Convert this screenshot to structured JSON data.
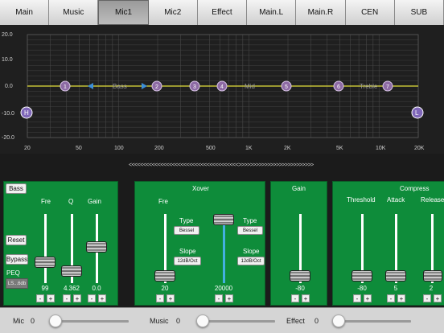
{
  "tabs": [
    "Main",
    "Music",
    "Mic1",
    "Mic2",
    "Effect",
    "Main.L",
    "Main.R",
    "CEN",
    "SUB"
  ],
  "active_tab": "Mic1",
  "eq": {
    "y_labels": [
      "20.0",
      "10.0",
      "0.0",
      "-10.0",
      "-20.0"
    ],
    "x_labels": [
      "20",
      "50",
      "100",
      "200",
      "500",
      "1K",
      "2K",
      "5K",
      "10K",
      "20K"
    ],
    "bands": [
      "1",
      "2",
      "3",
      "4",
      "5",
      "6",
      "7"
    ],
    "band_text": {
      "bass": "Bass",
      "mid": "Mid",
      "treble": "Treble"
    },
    "hp_label": "H",
    "lp_label": "L"
  },
  "scroller": "<<<<<<<<<<<<<<<<<<<<<<<<<<<<<<<<<<<<<<>>>>>>>>>>>>>>>>>>>>>>>>>>>>>>>>>>>",
  "peq": {
    "bass_btn": "Bass",
    "reset_btn": "Reset",
    "bypass_btn": "Bypass",
    "peq_label": "PEQ",
    "preset": "LS...6db",
    "fre_label": "Fre",
    "q_label": "Q",
    "gain_label": "Gain",
    "fre_val": "99",
    "q_val": "4.362",
    "gain_val": "0.0"
  },
  "xover": {
    "title": "Xover",
    "fre_label": "Fre",
    "type_label": "Type",
    "slope_label": "Slope",
    "left_type": "Bessel",
    "left_slope": "12dB/Oct",
    "right_type": "Bessel",
    "right_slope": "12dB/Oct",
    "left_val": "20",
    "right_val": "20000"
  },
  "gain": {
    "title": "Gain",
    "val": "-80"
  },
  "compress": {
    "title": "Compress",
    "threshold_label": "Threshold",
    "attack_label": "Attack",
    "release_label": "Release",
    "threshold_val": "-80",
    "attack_val": "5",
    "release_val": "2"
  },
  "controls": {
    "plus": "+",
    "minus": "-"
  },
  "bottom": {
    "mic_label": "Mic",
    "mic_val": "0",
    "music_label": "Music",
    "music_val": "0",
    "effect_label": "Effect",
    "effect_val": "0"
  },
  "colors": {
    "panel": "#0e8c3a",
    "eq_line": "#e3e03a",
    "marker": "#8e6ba5",
    "fill": "#44b0e0"
  }
}
